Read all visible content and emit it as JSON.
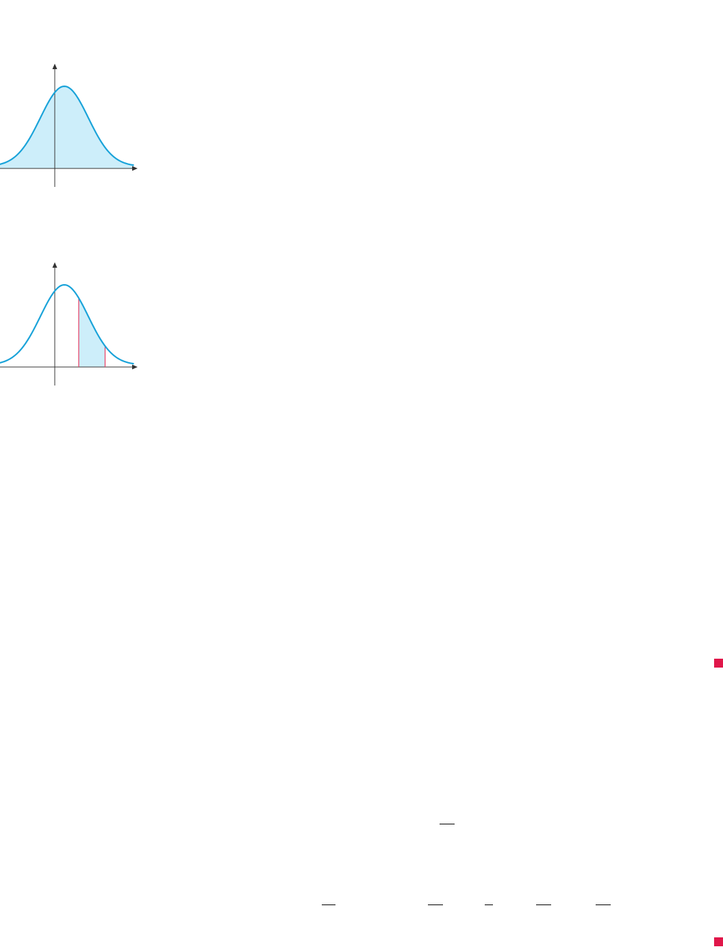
{
  "colors": {
    "curve": "#1aa3d9",
    "fill": "#cdeefa",
    "axis": "#333333",
    "bound": "#e8456a",
    "marker": "#e0174a"
  },
  "figures": [
    {
      "type": "density-curve",
      "shaded": "entire-area",
      "curve": {
        "mean": 0.4,
        "sd": 1.0
      }
    },
    {
      "type": "density-curve",
      "shaded": "between-bounds",
      "curve": {
        "mean": 0.4,
        "sd": 1.0
      },
      "bounds": [
        1.0,
        2.1
      ]
    }
  ],
  "end_markers": 2
}
